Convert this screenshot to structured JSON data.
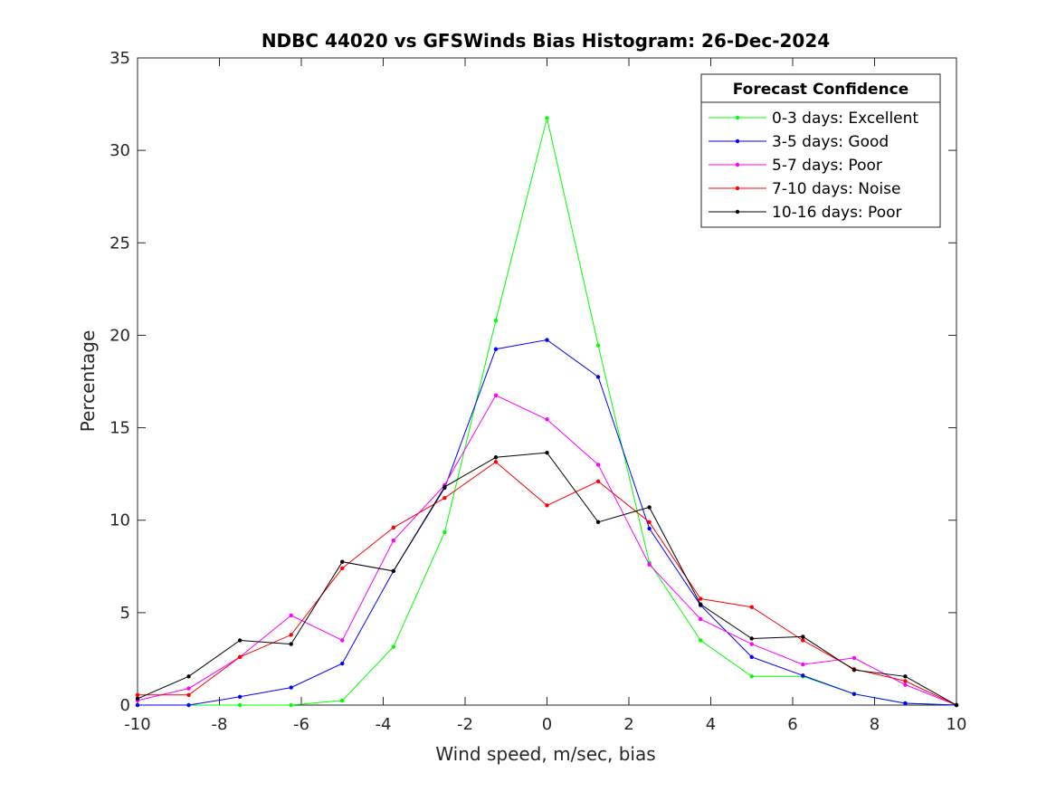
{
  "chart_data": {
    "type": "line",
    "title": "NDBC 44020 vs GFSWinds Bias Histogram: 26-Dec-2024",
    "xlabel": "Wind speed, m/sec, bias",
    "ylabel": "Percentage",
    "xlim": [
      -10,
      10
    ],
    "ylim": [
      0,
      35
    ],
    "xticks": [
      -10,
      -8,
      -6,
      -4,
      -2,
      0,
      2,
      4,
      6,
      8,
      10
    ],
    "yticks": [
      0,
      5,
      10,
      15,
      20,
      25,
      30,
      35
    ],
    "grid": false,
    "legend_title": "Forecast Confidence",
    "legend_position": "top-right",
    "x": [
      -10,
      -8.75,
      -7.5,
      -6.25,
      -5,
      -3.75,
      -2.5,
      -1.25,
      0,
      1.25,
      2.5,
      3.75,
      5,
      6.25,
      7.5,
      8.75,
      10
    ],
    "series": [
      {
        "name": "0-3 days: Excellent",
        "color": "#00ff00",
        "values": [
          0,
          0,
          0,
          0,
          0.25,
          3.15,
          9.35,
          20.8,
          31.75,
          19.45,
          7.7,
          3.5,
          1.55,
          1.55,
          0.6,
          0.1,
          0
        ]
      },
      {
        "name": "3-5 days: Good",
        "color": "#0000ff",
        "values": [
          0,
          0,
          0.45,
          0.95,
          2.25,
          7.25,
          11.75,
          19.25,
          19.75,
          17.75,
          9.55,
          5.4,
          2.6,
          1.6,
          0.6,
          0.1,
          0
        ]
      },
      {
        "name": "5-7 days: Poor",
        "color": "#ff00ff",
        "values": [
          0.25,
          0.9,
          2.6,
          4.85,
          3.5,
          8.9,
          11.9,
          16.75,
          15.45,
          13.0,
          7.6,
          4.65,
          3.3,
          2.2,
          2.55,
          1.1,
          0
        ]
      },
      {
        "name": "7-10 days: Noise",
        "color": "#ff0000",
        "values": [
          0.55,
          0.55,
          2.6,
          3.8,
          7.4,
          9.6,
          11.2,
          13.15,
          10.8,
          12.1,
          9.9,
          5.75,
          5.3,
          3.5,
          1.95,
          1.3,
          0
        ]
      },
      {
        "name": "10-16 days: Poor",
        "color": "#000000",
        "values": [
          0.35,
          1.55,
          3.5,
          3.3,
          7.75,
          7.25,
          11.8,
          13.4,
          13.65,
          9.9,
          10.7,
          5.45,
          3.6,
          3.7,
          1.9,
          1.55,
          0
        ]
      }
    ]
  }
}
